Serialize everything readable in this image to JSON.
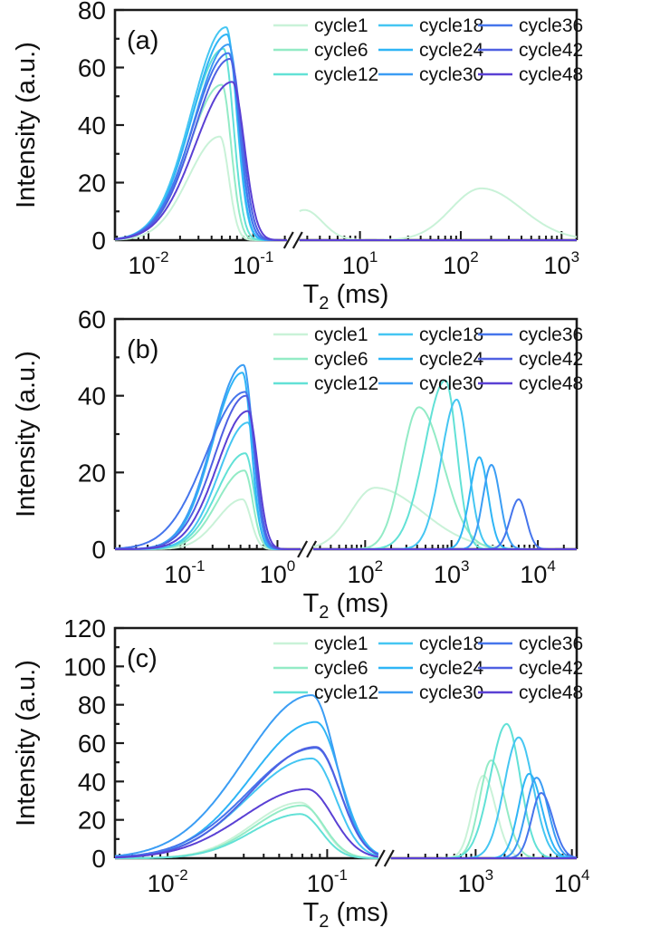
{
  "figure": {
    "background": "#ffffff",
    "axis_color": "#1a1a1a",
    "text_color": "#111111"
  },
  "legend": {
    "columns": [
      [
        "cycle1",
        "cycle6",
        "cycle12"
      ],
      [
        "cycle18",
        "cycle24",
        "cycle30"
      ],
      [
        "cycle36",
        "cycle42",
        "cycle48"
      ]
    ],
    "position": "top-inside"
  },
  "series_colors": {
    "cycle1": "#c9f2d8",
    "cycle6": "#93ebc6",
    "cycle12": "#62e1d6",
    "cycle18": "#45c6f2",
    "cycle24": "#2fb5f6",
    "cycle30": "#3b9df4",
    "cycle36": "#4575ec",
    "cycle42": "#4f60e2",
    "cycle48": "#5a40d4"
  },
  "chart_data": [
    {
      "type": "line",
      "panel_label": "(a)",
      "xlabel": "T2 (ms)",
      "ylabel": "Intensity (a.u.)",
      "x_axis": {
        "scale": "log10-broken",
        "left_range_log10": [
          -2.32,
          -0.68
        ],
        "right_range_log10": [
          0.4,
          3.15
        ],
        "break_fraction": 0.38,
        "labeled_decades_left": [
          -2,
          -1
        ],
        "labeled_decades_right": [
          1,
          2,
          3
        ]
      },
      "y_axis": {
        "range": [
          0,
          80
        ],
        "major_ticks": [
          0,
          20,
          40,
          60,
          80
        ],
        "minor_step": 10
      },
      "series": [
        {
          "name": "cycle1",
          "peaks": [
            {
              "center_ms": 0.048,
              "amplitude": 36,
              "sl": 0.3,
              "sr": 0.085
            },
            {
              "center_ms": 2.8,
              "amplitude": 10.5,
              "sl": 0.16,
              "sr": 0.18
            },
            {
              "center_ms": 160,
              "amplitude": 18,
              "sl": 0.3,
              "sr": 0.4
            }
          ]
        },
        {
          "name": "cycle6",
          "peaks": [
            {
              "center_ms": 0.05,
              "amplitude": 54,
              "sl": 0.31,
              "sr": 0.09
            }
          ]
        },
        {
          "name": "cycle12",
          "peaks": [
            {
              "center_ms": 0.052,
              "amplitude": 66.5,
              "sl": 0.32,
              "sr": 0.095
            }
          ]
        },
        {
          "name": "cycle18",
          "peaks": [
            {
              "center_ms": 0.055,
              "amplitude": 74,
              "sl": 0.33,
              "sr": 0.1
            }
          ]
        },
        {
          "name": "cycle24",
          "peaks": [
            {
              "center_ms": 0.056,
              "amplitude": 71.5,
              "sl": 0.33,
              "sr": 0.1
            }
          ]
        },
        {
          "name": "cycle30",
          "peaks": [
            {
              "center_ms": 0.058,
              "amplitude": 68,
              "sl": 0.33,
              "sr": 0.105
            }
          ]
        },
        {
          "name": "cycle36",
          "peaks": [
            {
              "center_ms": 0.058,
              "amplitude": 65,
              "sl": 0.34,
              "sr": 0.105
            }
          ]
        },
        {
          "name": "cycle42",
          "peaks": [
            {
              "center_ms": 0.06,
              "amplitude": 63,
              "sl": 0.34,
              "sr": 0.11
            }
          ]
        },
        {
          "name": "cycle48",
          "peaks": [
            {
              "center_ms": 0.063,
              "amplitude": 55,
              "sl": 0.35,
              "sr": 0.115
            }
          ]
        }
      ]
    },
    {
      "type": "line",
      "panel_label": "(b)",
      "xlabel": "T2 (ms)",
      "ylabel": "Intensity (a.u.)",
      "x_axis": {
        "scale": "log10-broken",
        "left_range_log10": [
          -1.75,
          0.25
        ],
        "right_range_log10": [
          1.4,
          4.45
        ],
        "break_fraction": 0.41,
        "labeled_decades_left": [
          -1,
          0
        ],
        "labeled_decades_right": [
          2,
          3,
          4
        ]
      },
      "y_axis": {
        "range": [
          0,
          60
        ],
        "major_ticks": [
          0,
          20,
          40,
          60
        ],
        "minor_step": 10
      },
      "series": [
        {
          "name": "cycle1",
          "peaks": [
            {
              "center_ms": 0.42,
              "amplitude": 13,
              "sl": 0.27,
              "sr": 0.09
            },
            {
              "center_ms": 130,
              "amplitude": 16,
              "sl": 0.28,
              "sr": 0.55
            }
          ]
        },
        {
          "name": "cycle6",
          "peaks": [
            {
              "center_ms": 0.44,
              "amplitude": 20.5,
              "sl": 0.29,
              "sr": 0.09
            },
            {
              "center_ms": 420,
              "amplitude": 37,
              "sl": 0.2,
              "sr": 0.28
            }
          ]
        },
        {
          "name": "cycle12",
          "peaks": [
            {
              "center_ms": 0.45,
              "amplitude": 25,
              "sl": 0.3,
              "sr": 0.095
            },
            {
              "center_ms": 850,
              "amplitude": 44,
              "sl": 0.24,
              "sr": 0.13
            }
          ]
        },
        {
          "name": "cycle18",
          "peaks": [
            {
              "center_ms": 0.48,
              "amplitude": 33,
              "sl": 0.31,
              "sr": 0.095
            },
            {
              "center_ms": 1150,
              "amplitude": 39,
              "sl": 0.18,
              "sr": 0.13
            }
          ]
        },
        {
          "name": "cycle24",
          "peaks": [
            {
              "center_ms": 0.42,
              "amplitude": 46,
              "sl": 0.32,
              "sr": 0.095
            },
            {
              "center_ms": 2100,
              "amplitude": 24,
              "sl": 0.11,
              "sr": 0.1
            }
          ]
        },
        {
          "name": "cycle30",
          "peaks": [
            {
              "center_ms": 0.43,
              "amplitude": 48,
              "sl": 0.33,
              "sr": 0.1
            },
            {
              "center_ms": 2900,
              "amplitude": 22,
              "sl": 0.1,
              "sr": 0.1
            }
          ]
        },
        {
          "name": "cycle36",
          "peaks": [
            {
              "center_ms": 0.45,
              "amplitude": 41,
              "sl": 0.42,
              "sr": 0.1
            },
            {
              "center_ms": 6000,
              "amplitude": 13,
              "sl": 0.1,
              "sr": 0.09
            }
          ]
        },
        {
          "name": "cycle42",
          "peaks": [
            {
              "center_ms": 0.46,
              "amplitude": 40,
              "sl": 0.34,
              "sr": 0.1
            }
          ]
        },
        {
          "name": "cycle48",
          "peaks": [
            {
              "center_ms": 0.48,
              "amplitude": 36,
              "sl": 0.33,
              "sr": 0.105
            }
          ]
        }
      ]
    },
    {
      "type": "line",
      "panel_label": "(c)",
      "xlabel": "T2 (ms)",
      "ylabel": "Intensity (a.u.)",
      "x_axis": {
        "scale": "log10-broken",
        "left_range_log10": [
          -2.33,
          -0.68
        ],
        "right_range_log10": [
          2.12,
          4.05
        ],
        "break_fraction": 0.578,
        "labeled_decades_left": [
          -2,
          -1
        ],
        "labeled_decades_right": [
          3,
          4
        ]
      },
      "y_axis": {
        "range": [
          0,
          120
        ],
        "major_ticks": [
          0,
          20,
          40,
          60,
          80,
          100,
          120
        ],
        "minor_step": 10
      },
      "series": [
        {
          "name": "cycle1",
          "peaks": [
            {
              "center_ms": 0.068,
              "amplitude": 29,
              "sl": 0.3,
              "sr": 0.135
            },
            {
              "center_ms": 1200,
              "amplitude": 43,
              "sl": 0.11,
              "sr": 0.13
            }
          ]
        },
        {
          "name": "cycle6",
          "peaks": [
            {
              "center_ms": 0.07,
              "amplitude": 27.5,
              "sl": 0.3,
              "sr": 0.135
            },
            {
              "center_ms": 1450,
              "amplitude": 51,
              "sl": 0.12,
              "sr": 0.14
            }
          ]
        },
        {
          "name": "cycle12",
          "peaks": [
            {
              "center_ms": 0.068,
              "amplitude": 23,
              "sl": 0.3,
              "sr": 0.13
            },
            {
              "center_ms": 2100,
              "amplitude": 70,
              "sl": 0.17,
              "sr": 0.14
            }
          ]
        },
        {
          "name": "cycle18",
          "peaks": [
            {
              "center_ms": 0.08,
              "amplitude": 52,
              "sl": 0.4,
              "sr": 0.15
            },
            {
              "center_ms": 2800,
              "amplitude": 63,
              "sl": 0.15,
              "sr": 0.15
            }
          ]
        },
        {
          "name": "cycle24",
          "peaks": [
            {
              "center_ms": 0.085,
              "amplitude": 71,
              "sl": 0.4,
              "sr": 0.15
            },
            {
              "center_ms": 3600,
              "amplitude": 44,
              "sl": 0.11,
              "sr": 0.13
            }
          ]
        },
        {
          "name": "cycle30",
          "peaks": [
            {
              "center_ms": 0.08,
              "amplitude": 85,
              "sl": 0.42,
              "sr": 0.15
            },
            {
              "center_ms": 4300,
              "amplitude": 42,
              "sl": 0.11,
              "sr": 0.12
            }
          ]
        },
        {
          "name": "cycle36",
          "peaks": [
            {
              "center_ms": 0.085,
              "amplitude": 57.5,
              "sl": 0.42,
              "sr": 0.15
            },
            {
              "center_ms": 4800,
              "amplitude": 34,
              "sl": 0.1,
              "sr": 0.12
            }
          ]
        },
        {
          "name": "cycle42",
          "peaks": [
            {
              "center_ms": 0.085,
              "amplitude": 58,
              "sl": 0.4,
              "sr": 0.15
            }
          ]
        },
        {
          "name": "cycle48",
          "peaks": [
            {
              "center_ms": 0.075,
              "amplitude": 36,
              "sl": 0.4,
              "sr": 0.16
            }
          ]
        }
      ]
    }
  ]
}
